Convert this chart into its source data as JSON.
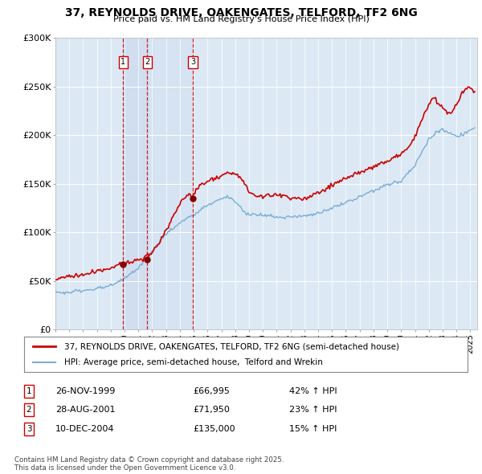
{
  "title": "37, REYNOLDS DRIVE, OAKENGATES, TELFORD, TF2 6NG",
  "subtitle": "Price paid vs. HM Land Registry's House Price Index (HPI)",
  "bg_color": "#ffffff",
  "plot_bg_color": "#dce9f5",
  "highlight_bg_color": "#c8d8ee",
  "red_line_color": "#cc0000",
  "blue_line_color": "#7aadd4",
  "sale_marker_color": "#880000",
  "vline_color": "#cc0000",
  "vline2_color": "#aabbcc",
  "grid_color": "#ffffff",
  "ylim": [
    0,
    300000
  ],
  "yticks": [
    0,
    50000,
    100000,
    150000,
    200000,
    250000,
    300000
  ],
  "ytick_labels": [
    "£0",
    "£50K",
    "£100K",
    "£150K",
    "£200K",
    "£250K",
    "£300K"
  ],
  "sales": [
    {
      "id": 1,
      "x": 1999.9,
      "price": 66995,
      "label": "26-NOV-1999",
      "price_str": "£66,995",
      "hpi_pct": "42% ↑ HPI"
    },
    {
      "id": 2,
      "x": 2001.65,
      "price": 71950,
      "label": "28-AUG-2001",
      "price_str": "£71,950",
      "hpi_pct": "23% ↑ HPI"
    },
    {
      "id": 3,
      "x": 2004.95,
      "price": 135000,
      "label": "10-DEC-2004",
      "price_str": "£135,000",
      "hpi_pct": "15% ↑ HPI"
    }
  ],
  "legend_entries": [
    "37, REYNOLDS DRIVE, OAKENGATES, TELFORD, TF2 6NG (semi-detached house)",
    "HPI: Average price, semi-detached house,  Telford and Wrekin"
  ],
  "footer": "Contains HM Land Registry data © Crown copyright and database right 2025.\nThis data is licensed under the Open Government Licence v3.0.",
  "xmin": 1995.0,
  "xmax": 2025.5
}
